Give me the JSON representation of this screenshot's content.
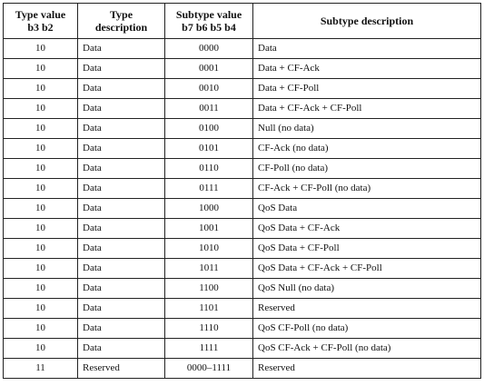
{
  "table": {
    "headers": [
      "Type value b3 b2",
      "Type description",
      "Subtype value b7 b6 b5 b4",
      "Subtype description"
    ],
    "rows": [
      [
        "10",
        "Data",
        "0000",
        "Data"
      ],
      [
        "10",
        "Data",
        "0001",
        "Data + CF-Ack"
      ],
      [
        "10",
        "Data",
        "0010",
        "Data + CF-Poll"
      ],
      [
        "10",
        "Data",
        "0011",
        "Data + CF-Ack + CF-Poll"
      ],
      [
        "10",
        "Data",
        "0100",
        "Null (no data)"
      ],
      [
        "10",
        "Data",
        "0101",
        "CF-Ack (no data)"
      ],
      [
        "10",
        "Data",
        "0110",
        "CF-Poll (no data)"
      ],
      [
        "10",
        "Data",
        "0111",
        "CF-Ack + CF-Poll (no data)"
      ],
      [
        "10",
        "Data",
        "1000",
        "QoS Data"
      ],
      [
        "10",
        "Data",
        "1001",
        "QoS Data + CF-Ack"
      ],
      [
        "10",
        "Data",
        "1010",
        "QoS Data + CF-Poll"
      ],
      [
        "10",
        "Data",
        "1011",
        "QoS Data + CF-Ack + CF-Poll"
      ],
      [
        "10",
        "Data",
        "1100",
        "QoS Null (no data)"
      ],
      [
        "10",
        "Data",
        "1101",
        "Reserved"
      ],
      [
        "10",
        "Data",
        "1110",
        "QoS CF-Poll (no data)"
      ],
      [
        "10",
        "Data",
        "1111",
        "QoS CF-Ack + CF-Poll (no data)"
      ],
      [
        "11",
        "Reserved",
        "0000–1111",
        "Reserved"
      ]
    ]
  }
}
